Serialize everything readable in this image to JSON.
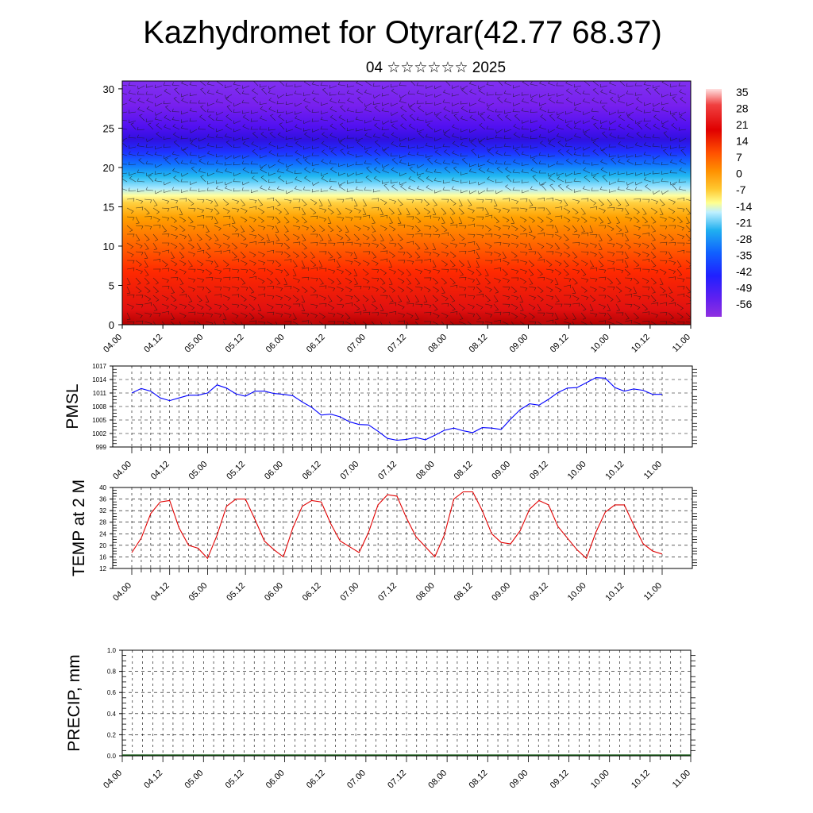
{
  "title": "Kazhydromet for Otyrar(42.77 68.37)",
  "subtitle": "04 ☆☆☆☆☆☆ 2025",
  "time_ticks": [
    "04.00",
    "04.12",
    "05.00",
    "05.12",
    "06.00",
    "06.12",
    "07.00",
    "07.12",
    "08.00",
    "08.12",
    "09.00",
    "09.12",
    "10.00",
    "10.12",
    "11.00"
  ],
  "chart_data": [
    {
      "type": "heatmap",
      "name": "temperature-wind-cross-section",
      "x_ticks": [
        "04.00",
        "04.12",
        "05.00",
        "05.12",
        "06.00",
        "06.12",
        "07.00",
        "07.12",
        "08.00",
        "08.12",
        "09.00",
        "09.12",
        "10.00",
        "10.12",
        "11.00"
      ],
      "y_ticks": [
        0,
        5,
        10,
        15,
        20,
        25,
        30
      ],
      "ylim": [
        0,
        31
      ],
      "colorbar_labels": [
        "35",
        "28",
        "21",
        "14",
        "7",
        "0",
        "-7",
        "-14",
        "-21",
        "-28",
        "-35",
        "-42",
        "-49",
        "-56"
      ],
      "colorbar_colors": [
        "#ffd0d0",
        "#f03020",
        "#ff6000",
        "#ff9800",
        "#ffcc40",
        "#ffff90",
        "#a0e8ff",
        "#00b0f0",
        "#2040ff",
        "#8020e0"
      ],
      "wind_barbs": true
    },
    {
      "type": "line",
      "name": "pmsl",
      "ylabel": "PMSL",
      "ylim": [
        999,
        1017
      ],
      "y_ticks": [
        999,
        1002,
        1005,
        1008,
        1011,
        1014,
        1017
      ],
      "x_ticks": [
        "04.00",
        "04.12",
        "05.00",
        "05.12",
        "06.00",
        "06.12",
        "07.00",
        "07.12",
        "08.00",
        "08.12",
        "09.00",
        "09.12",
        "10.00",
        "10.12",
        "11.00"
      ],
      "color": "#0000ff",
      "values": [
        1011.0,
        1012.0,
        1011.4,
        1009.9,
        1009.3,
        1009.9,
        1010.5,
        1010.5,
        1011.0,
        1012.8,
        1012.1,
        1010.8,
        1010.3,
        1011.4,
        1011.4,
        1010.9,
        1010.7,
        1010.4,
        1009.0,
        1007.8,
        1006.1,
        1006.3,
        1005.7,
        1004.6,
        1004.0,
        1003.9,
        1002.5,
        1000.9,
        1000.5,
        1000.7,
        1001.1,
        1000.6,
        1001.6,
        1002.7,
        1003.2,
        1002.6,
        1002.2,
        1003.3,
        1003.2,
        1002.9,
        1005.2,
        1007.3,
        1008.6,
        1008.3,
        1009.6,
        1011.1,
        1012.1,
        1012.2,
        1013.3,
        1014.4,
        1014.3,
        1012.2,
        1011.4,
        1011.9,
        1011.6,
        1010.7,
        1010.7
      ]
    },
    {
      "type": "line",
      "name": "temp-2m",
      "ylabel": "TEMP at 2 M",
      "ylim": [
        12,
        40
      ],
      "y_ticks": [
        12,
        16,
        20,
        24,
        28,
        32,
        36,
        40
      ],
      "x_ticks": [
        "04.00",
        "04.12",
        "05.00",
        "05.12",
        "06.00",
        "06.12",
        "07.00",
        "07.12",
        "08.00",
        "08.12",
        "09.00",
        "09.12",
        "10.00",
        "10.12",
        "11.00"
      ],
      "color": "#e00000",
      "values": [
        17.5,
        22.5,
        31.0,
        35.0,
        35.5,
        26.0,
        20.0,
        19.0,
        15.5,
        23.5,
        33.5,
        36.0,
        36.0,
        29.0,
        21.5,
        18.5,
        16.0,
        26.0,
        33.5,
        35.5,
        35.0,
        27.5,
        21.5,
        19.5,
        17.5,
        24.5,
        34.0,
        37.5,
        37.0,
        29.5,
        23.0,
        19.5,
        16.0,
        23.5,
        36.0,
        38.5,
        38.5,
        32.0,
        24.0,
        21.0,
        20.5,
        25.0,
        32.5,
        35.5,
        34.0,
        26.5,
        22.5,
        18.5,
        15.5,
        24.5,
        31.5,
        34.0,
        34.0,
        27.0,
        20.5,
        18.0,
        17.0
      ]
    },
    {
      "type": "bar",
      "name": "precip",
      "ylabel": "PRECIP, mm",
      "ylim": [
        0,
        1
      ],
      "y_ticks": [
        "0.0",
        "0.2",
        "0.4",
        "0.6",
        "0.8",
        "1.0"
      ],
      "x_ticks": [
        "04.00",
        "04.12",
        "05.00",
        "05.12",
        "06.00",
        "06.12",
        "07.00",
        "07.12",
        "08.00",
        "08.12",
        "09.00",
        "09.12",
        "10.00",
        "10.12",
        "11.00"
      ],
      "values": []
    }
  ]
}
